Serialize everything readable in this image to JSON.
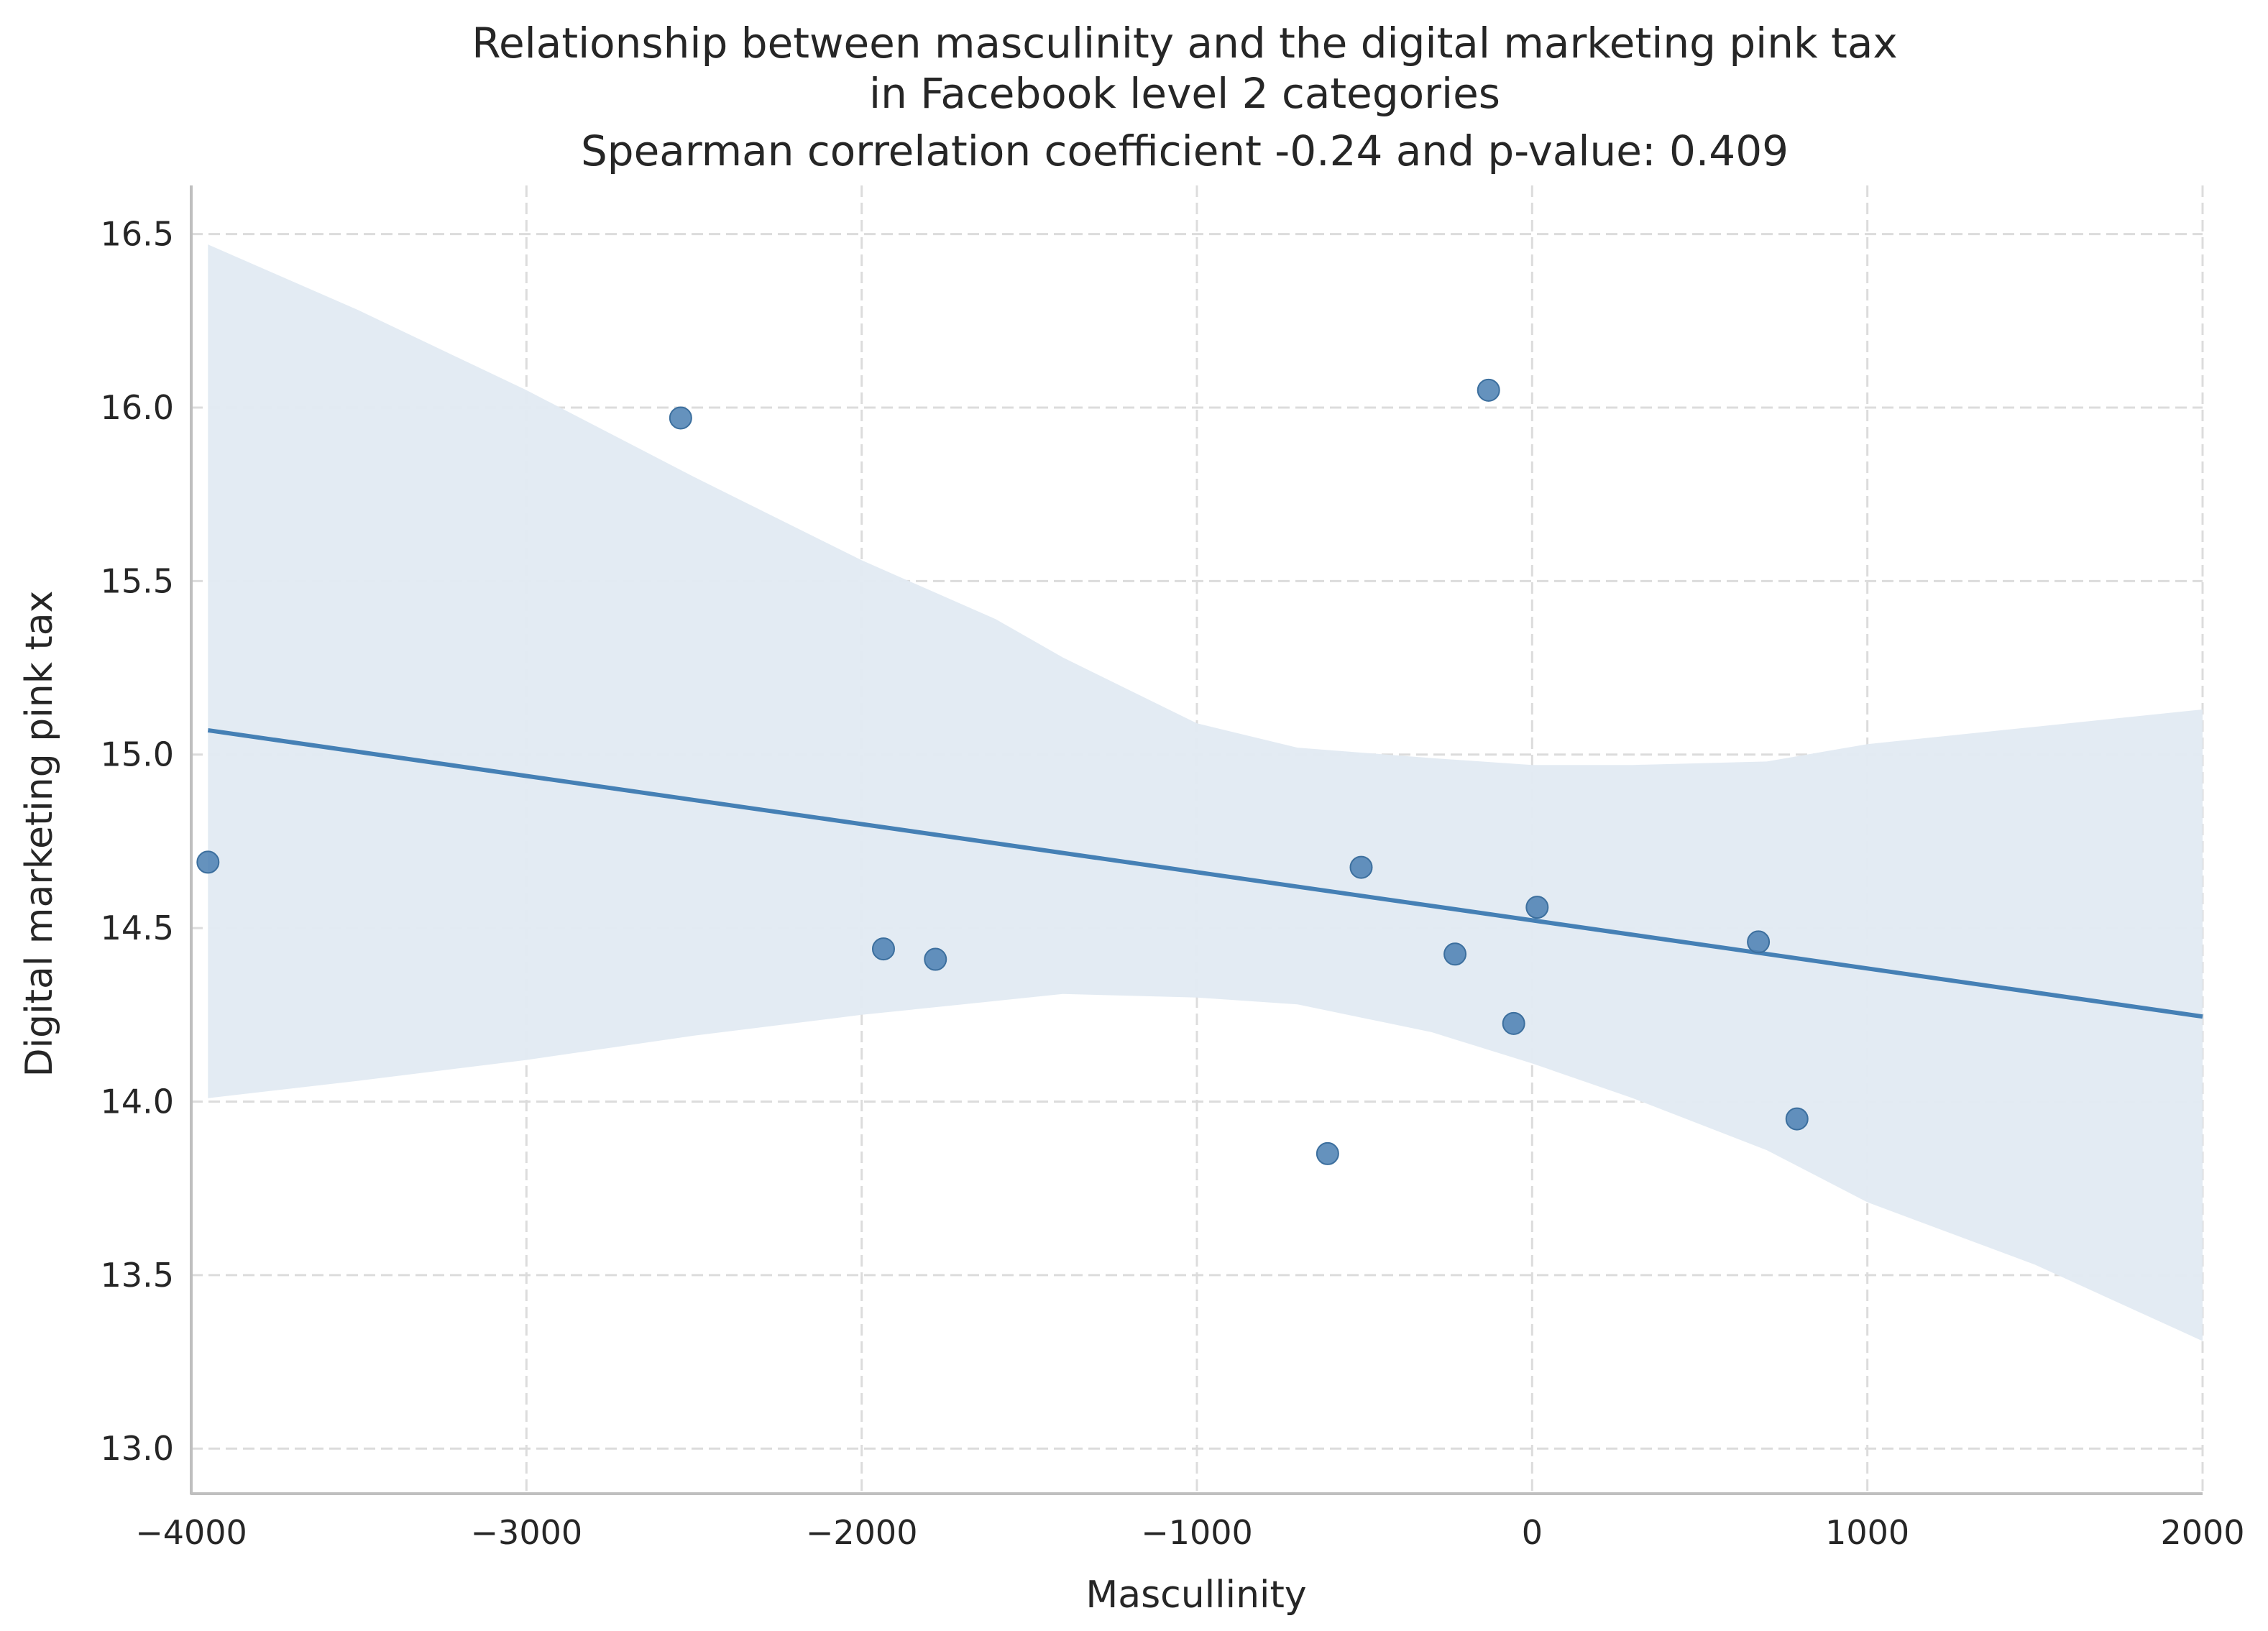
{
  "chart_data": {
    "type": "scatter",
    "title_lines": [
      "Relationship between masculinity and the digital marketing pink tax",
      "in Facebook level 2 categories",
      "Spearman correlation coefficient -0.24 and p-value: 0.409"
    ],
    "xlabel": "Mascullinity",
    "ylabel": "Digital marketing pink tax",
    "xlim": [
      -4000,
      2000
    ],
    "ylim": [
      12.87,
      16.64
    ],
    "x_ticks": [
      -4000,
      -3000,
      -2000,
      -1000,
      0,
      1000,
      2000
    ],
    "x_tick_labels": [
      "−4000",
      "−3000",
      "−2000",
      "−1000",
      "0",
      "1000",
      "2000"
    ],
    "y_ticks": [
      13.0,
      13.5,
      14.0,
      14.5,
      15.0,
      15.5,
      16.0,
      16.5
    ],
    "y_tick_labels": [
      "13.0",
      "13.5",
      "14.0",
      "14.5",
      "15.0",
      "15.5",
      "16.0",
      "16.5"
    ],
    "grid": true,
    "points": [
      {
        "x": -3950,
        "y": 14.69
      },
      {
        "x": -2540,
        "y": 15.97
      },
      {
        "x": -1935,
        "y": 14.44
      },
      {
        "x": -1780,
        "y": 14.41
      },
      {
        "x": -610,
        "y": 13.85
      },
      {
        "x": -510,
        "y": 14.675
      },
      {
        "x": -230,
        "y": 14.425
      },
      {
        "x": -130,
        "y": 16.05
      },
      {
        "x": -55,
        "y": 14.225
      },
      {
        "x": 15,
        "y": 14.56
      },
      {
        "x": 675,
        "y": 14.46
      },
      {
        "x": 790,
        "y": 13.95
      }
    ],
    "regression": {
      "x": [
        -3950,
        2000
      ],
      "y": [
        15.07,
        14.245
      ]
    },
    "confidence_band": {
      "x": [
        -3950,
        -3500,
        -3000,
        -2500,
        -2000,
        -1600,
        -1400,
        -1000,
        -700,
        -300,
        0,
        300,
        700,
        1000,
        1500,
        2000
      ],
      "upper": [
        16.47,
        16.28,
        16.05,
        15.8,
        15.56,
        15.39,
        15.28,
        15.09,
        15.02,
        14.99,
        14.97,
        14.97,
        14.98,
        15.03,
        15.08,
        15.13
      ],
      "lower": [
        14.01,
        14.06,
        14.12,
        14.19,
        14.25,
        14.29,
        14.31,
        14.3,
        14.28,
        14.2,
        14.11,
        14.01,
        13.86,
        13.71,
        13.53,
        13.31
      ]
    },
    "colors": {
      "point": "#4a7fb1",
      "line": "#4580b5",
      "band": "#e2eaf2",
      "grid": "#dcdcdc",
      "spine": "#bfbfbf"
    }
  }
}
